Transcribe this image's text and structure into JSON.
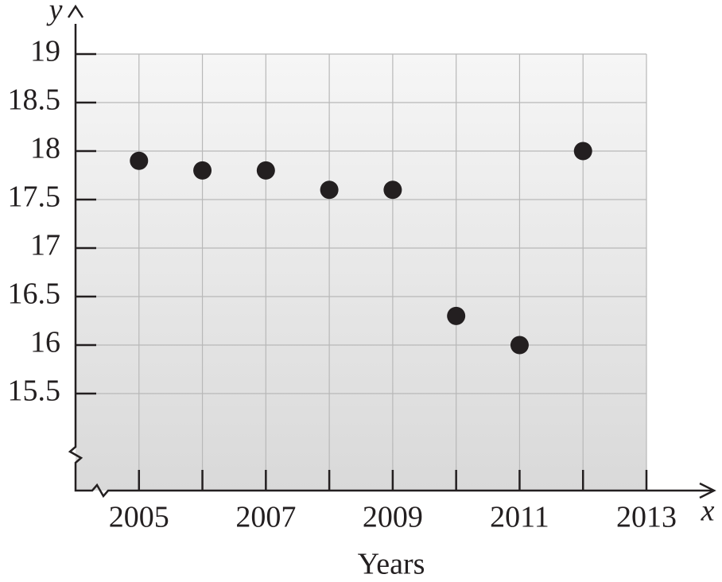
{
  "chart_data": {
    "type": "scatter",
    "x_label": "x",
    "y_label": "y",
    "x_title": "Years",
    "x": [
      2005,
      2006,
      2007,
      2008,
      2009,
      2010,
      2011,
      2012
    ],
    "values": [
      17.9,
      17.8,
      17.8,
      17.6,
      17.6,
      16.3,
      16.0,
      18.0
    ],
    "color": "#231f20",
    "xlim": [
      2004,
      2013
    ],
    "ylim": [
      14.5,
      19
    ],
    "xticks": [
      2005,
      2007,
      2009,
      2011,
      2013
    ],
    "xminor_ticks": [
      2006,
      2008,
      2010,
      2012
    ],
    "yticks": [
      15.5,
      16,
      16.5,
      17,
      17.5,
      18,
      18.5,
      19
    ],
    "grid": true
  }
}
